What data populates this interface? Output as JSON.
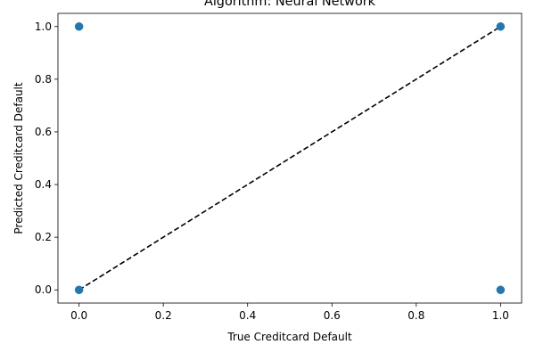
{
  "chart_data": {
    "type": "scatter",
    "title": "Algorithm: Neural Network",
    "xlabel": "True Creditcard Default",
    "ylabel": "Predicted Creditcard Default",
    "xlim": [
      -0.05,
      1.05
    ],
    "ylim": [
      -0.05,
      1.05
    ],
    "xticks": [
      "0.0",
      "0.2",
      "0.4",
      "0.6",
      "0.8",
      "1.0"
    ],
    "yticks": [
      "0.0",
      "0.2",
      "0.4",
      "0.6",
      "0.8",
      "1.0"
    ],
    "grid": false,
    "legend": false,
    "series": [
      {
        "points": [
          {
            "x": 0,
            "y": 0
          },
          {
            "x": 0,
            "y": 1
          },
          {
            "x": 1,
            "y": 0
          },
          {
            "x": 1,
            "y": 1
          }
        ],
        "color": "#1f77b4"
      }
    ],
    "reference_line": {
      "points": [
        {
          "x": 0,
          "y": 0
        },
        {
          "x": 1,
          "y": 1
        }
      ],
      "style": "dashed",
      "color": "#000000"
    }
  }
}
